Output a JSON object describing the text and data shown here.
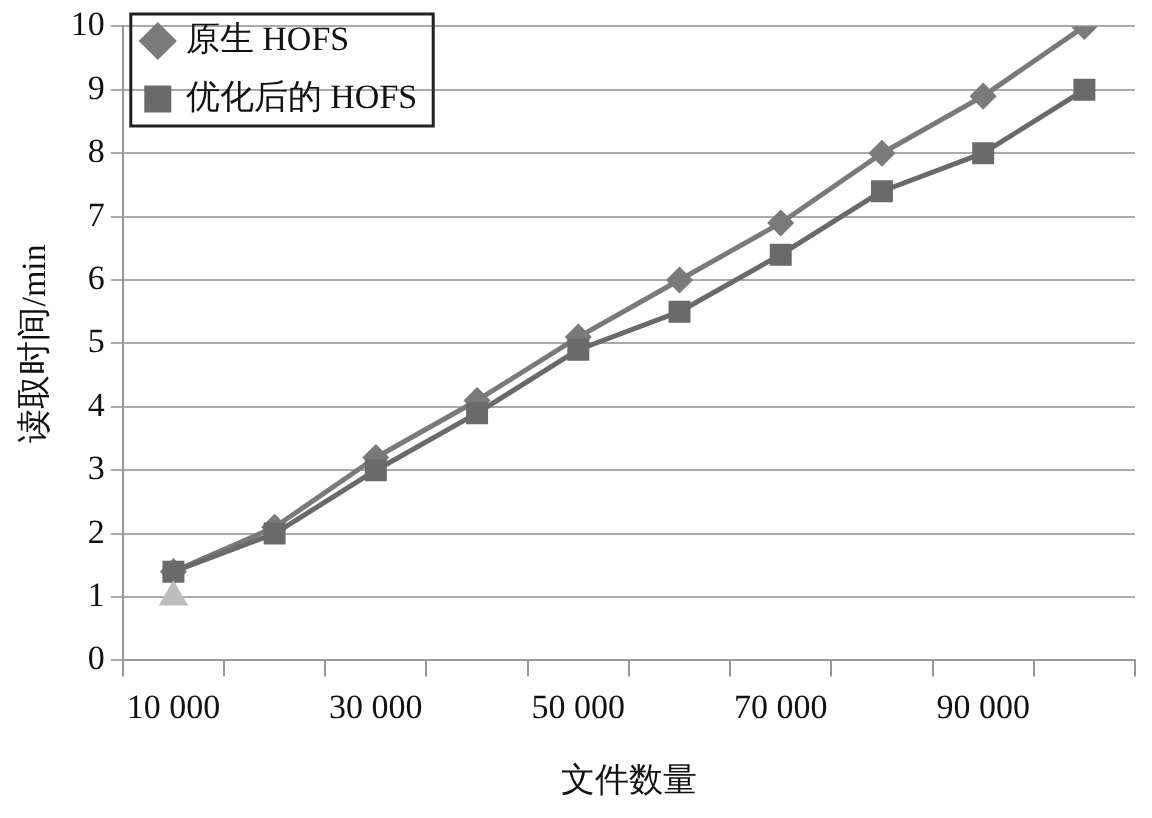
{
  "chart_data": {
    "type": "line",
    "xlabel": "文件数量",
    "ylabel": "读取时间/min",
    "categories": [
      "10 000",
      null,
      "30 000",
      null,
      "50 000",
      null,
      "70 000",
      null,
      "90 000",
      null
    ],
    "series": [
      {
        "name": "原生 HOFS",
        "color": "#7a7a7a",
        "marker": "diamond",
        "values": [
          1.4,
          2.1,
          3.2,
          4.1,
          5.1,
          6.0,
          6.9,
          8.0,
          8.9,
          10.0
        ]
      },
      {
        "name": "优化后的 HOFS",
        "color": "#6a6a6a",
        "marker": "square",
        "values": [
          1.4,
          2.0,
          3.0,
          3.9,
          4.9,
          5.5,
          6.4,
          7.4,
          8.0,
          9.0
        ]
      },
      {
        "type": "scatter",
        "color": "#bdbdbd",
        "marker": "triangle",
        "values": [
          1.0,
          null,
          null,
          null,
          null,
          null,
          null,
          null,
          null,
          null
        ]
      }
    ],
    "ylim": [
      0,
      10
    ],
    "yticks": [
      0,
      1,
      2,
      3,
      4,
      5,
      6,
      7,
      8,
      9,
      10
    ],
    "grid": "y",
    "legend": "top left"
  }
}
